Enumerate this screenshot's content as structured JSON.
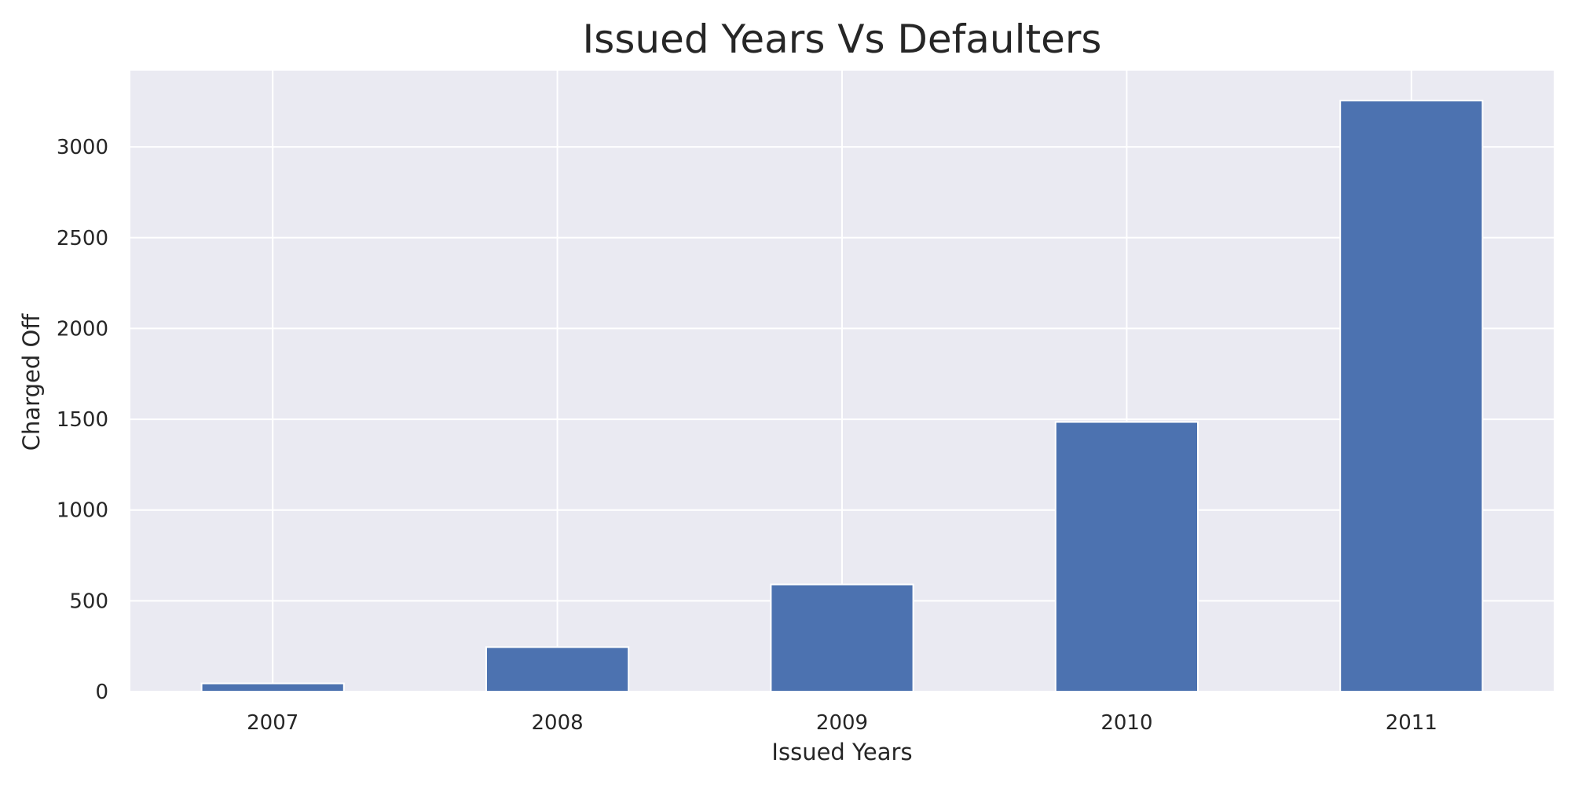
{
  "chart_data": {
    "type": "bar",
    "title": "Issued Years Vs Defaulters",
    "xlabel": "Issued Years",
    "ylabel": "Charged Off",
    "categories": [
      "2007",
      "2008",
      "2009",
      "2010",
      "2011"
    ],
    "values": [
      45,
      245,
      590,
      1485,
      3255
    ],
    "ylim": [
      0,
      3420
    ],
    "yticks": [
      0,
      500,
      1000,
      1500,
      2000,
      2500,
      3000
    ],
    "grid": true,
    "legend": "none",
    "colors": {
      "bar": "#4c72b0",
      "plot_background": "#eaeaf2",
      "grid": "#ffffff",
      "text": "#262626"
    }
  }
}
